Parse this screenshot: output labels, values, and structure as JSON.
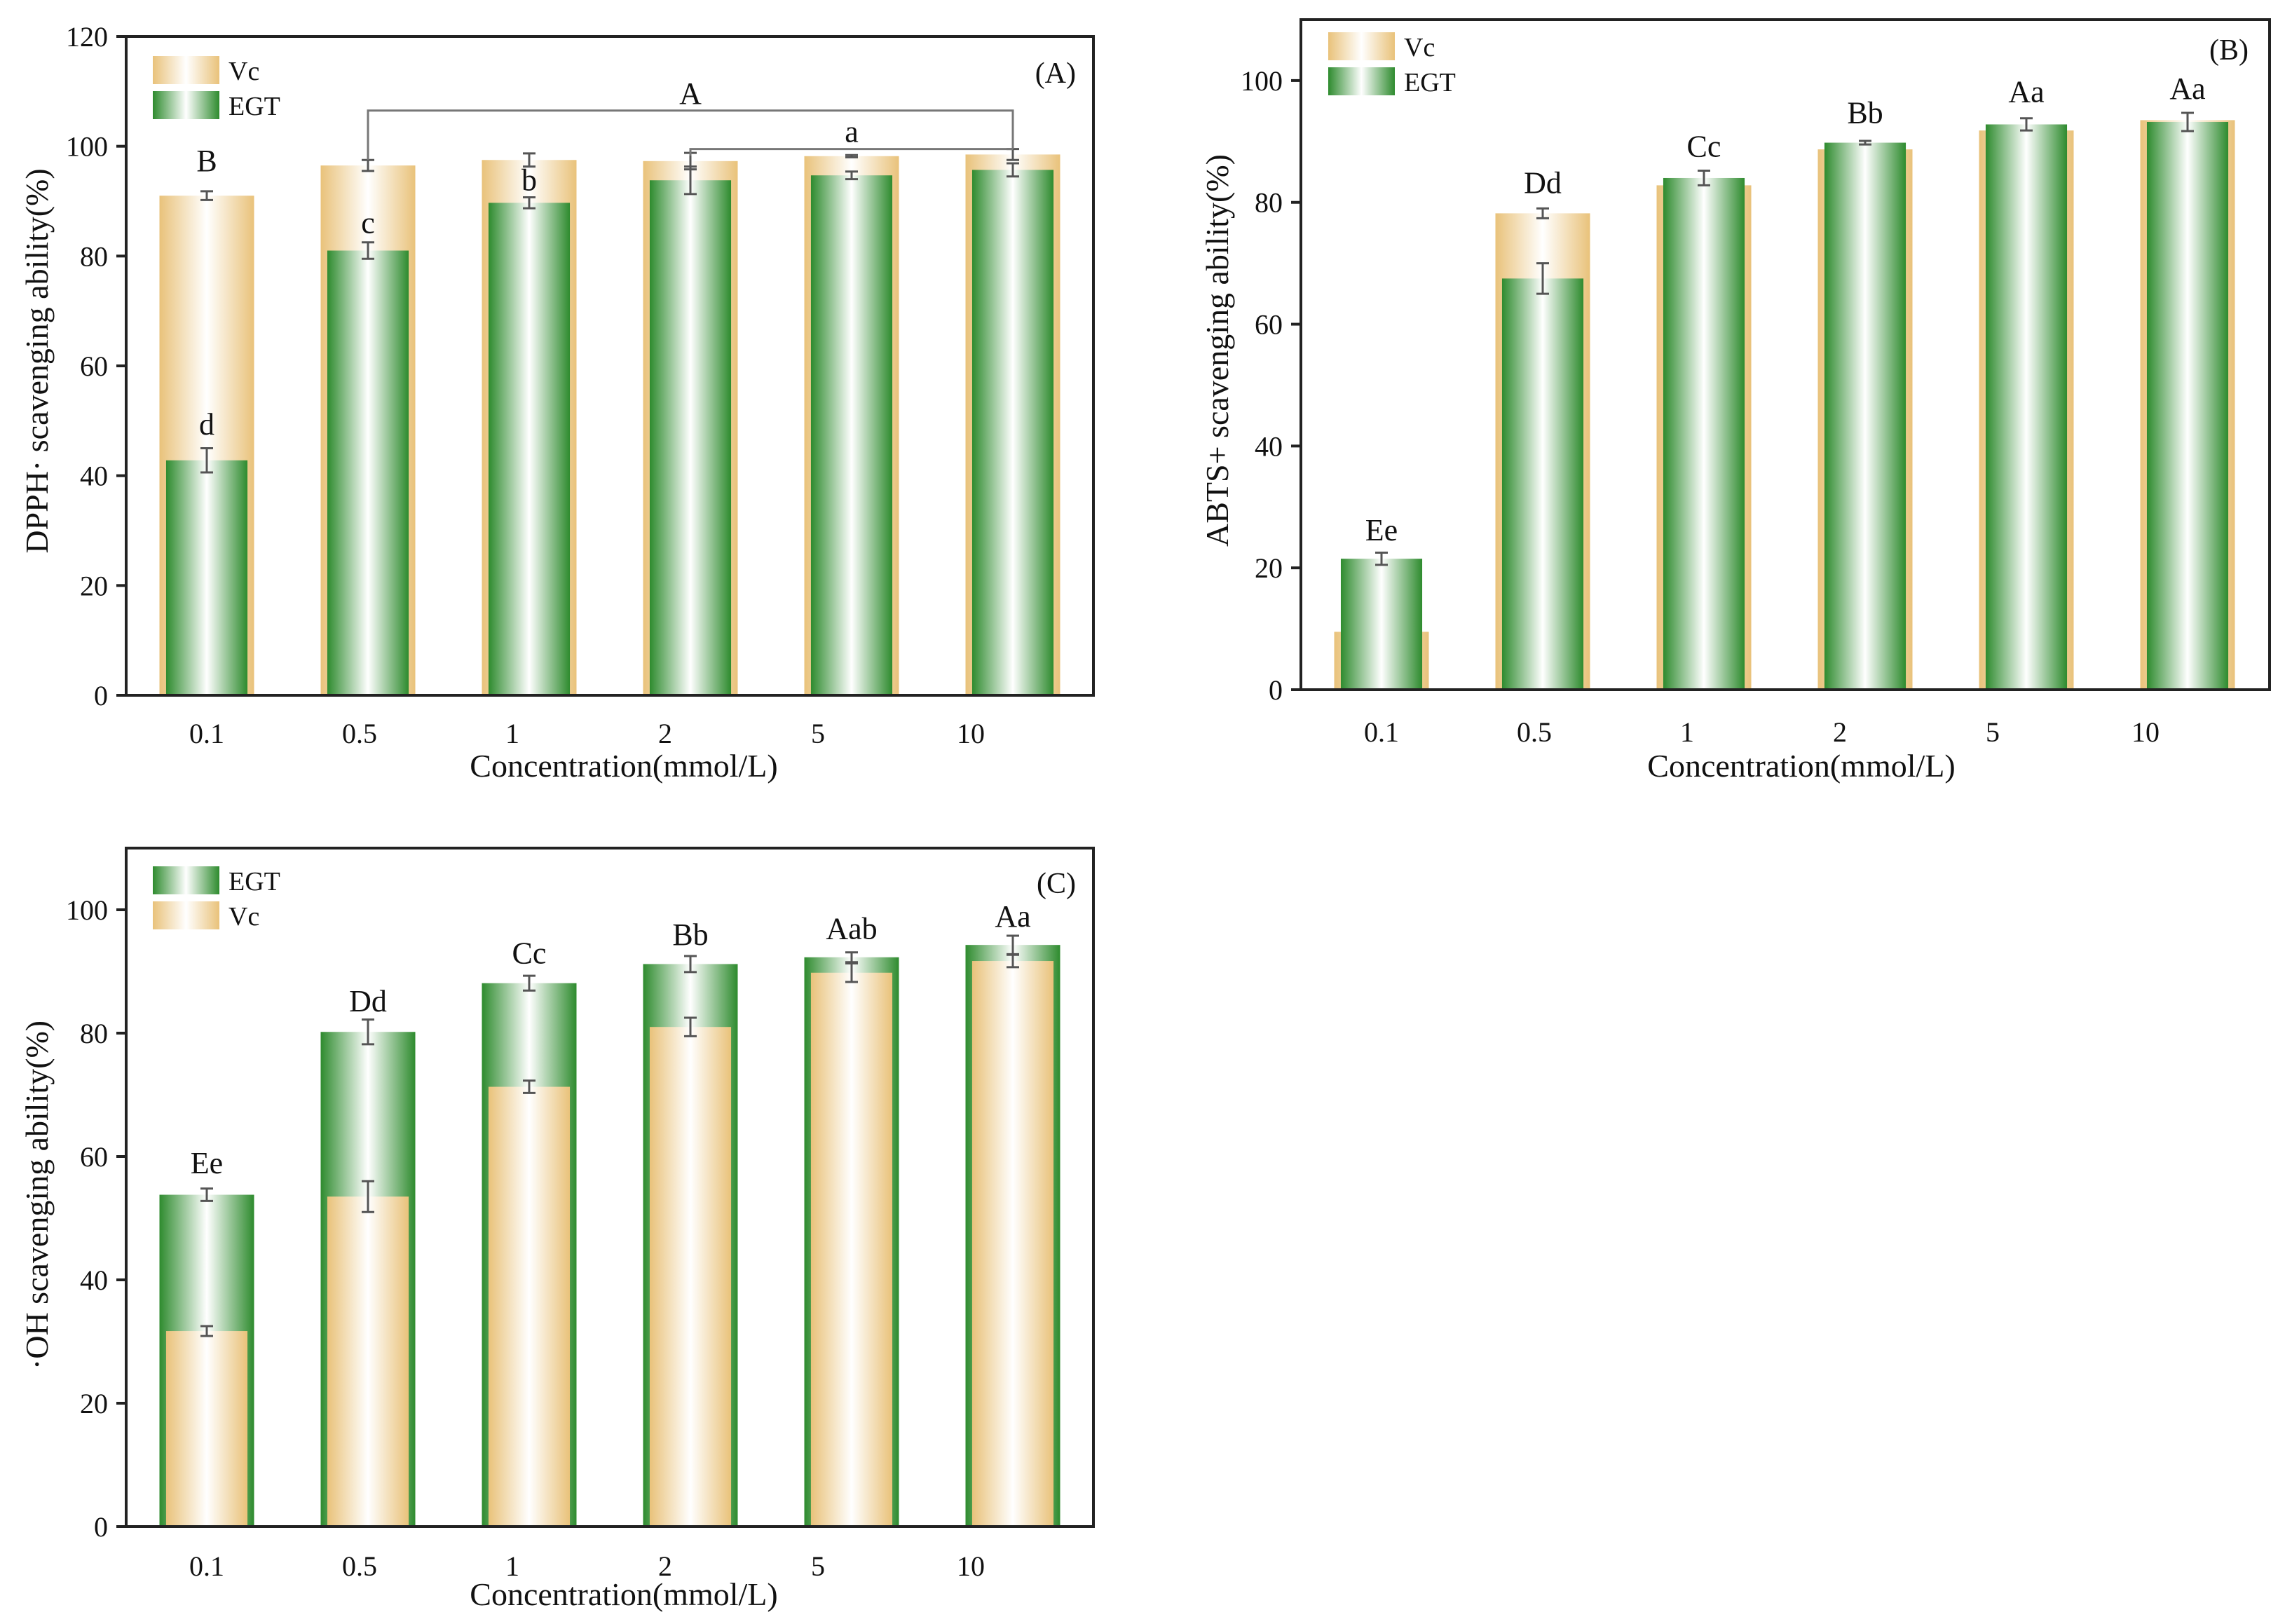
{
  "colors": {
    "vc_edge": "#E9C27A",
    "vc_center": "#FFFFFF",
    "egt_edge": "#2E8B2E",
    "egt_center": "#FFFFFF",
    "axis": "#222222",
    "error_bar": "#555555",
    "bracket": "#777777"
  },
  "chart_data": [
    {
      "id": "A",
      "type": "bar",
      "panel_label": "(A)",
      "xlabel": "Concentration(mmol/L)",
      "ylabel": "DPPH· scavenging ability(%)",
      "categories": [
        "0.1",
        "0.5",
        "1",
        "2",
        "5",
        "10"
      ],
      "ylim": [
        0,
        120
      ],
      "yticks": [
        0,
        20,
        40,
        60,
        80,
        100,
        120
      ],
      "legend_position": "top-left",
      "legend": [
        {
          "name": "Vc",
          "key": "vc"
        },
        {
          "name": "EGT",
          "key": "egt"
        }
      ],
      "draw_order": [
        "vc",
        "egt"
      ],
      "series": [
        {
          "name": "Vc",
          "key": "vc",
          "values": [
            91,
            96.5,
            97.5,
            97.3,
            98.2,
            98.5
          ],
          "errors": [
            0.8,
            1.0,
            1.2,
            1.5,
            0.2,
            1.0
          ]
        },
        {
          "name": "EGT",
          "key": "egt",
          "values": [
            42.8,
            81,
            89.7,
            93.8,
            94.7,
            95.7
          ],
          "errors": [
            2.2,
            1.5,
            1.0,
            2.5,
            0.7,
            1.2
          ]
        }
      ],
      "annotations": [
        {
          "text": "B",
          "cat": 0,
          "y": 95.5
        },
        {
          "text": "d",
          "cat": 0,
          "y": 47.5
        },
        {
          "text": "c",
          "cat": 1,
          "y": 84.2
        },
        {
          "text": "b",
          "cat": 2,
          "y": 92.0
        }
      ],
      "brackets": [
        {
          "text": "A",
          "from": 1,
          "to": 5,
          "y": 106.5
        },
        {
          "text": "a",
          "from": 3,
          "to": 5,
          "y": 99.5
        }
      ]
    },
    {
      "id": "B",
      "type": "bar",
      "panel_label": "(B)",
      "xlabel": "Concentration(mmol/L)",
      "ylabel": "ABTS+ scavenging ability(%)",
      "categories": [
        "0.1",
        "0.5",
        "1",
        "2",
        "5",
        "10"
      ],
      "ylim": [
        0,
        110
      ],
      "yticks": [
        0,
        20,
        40,
        60,
        80,
        100
      ],
      "legend_position": "top-left",
      "legend": [
        {
          "name": "Vc",
          "key": "vc"
        },
        {
          "name": "EGT",
          "key": "egt"
        }
      ],
      "draw_order": [
        "vc",
        "egt"
      ],
      "series": [
        {
          "name": "Vc",
          "key": "vc",
          "values": [
            9.5,
            78.2,
            82.8,
            88.7,
            91.8,
            93.5
          ],
          "errors": [
            0,
            0.8,
            0,
            0,
            0,
            0
          ]
        },
        {
          "name": "EGT",
          "key": "egt",
          "values": [
            21.5,
            67.5,
            84,
            89.8,
            92.8,
            93.2
          ],
          "errors": [
            1.0,
            2.5,
            1.2,
            0.3,
            1.0,
            1.5
          ]
        }
      ],
      "annotations": [
        {
          "text": "Ee",
          "cat": 0,
          "y": 24.5
        },
        {
          "text": "Dd",
          "cat": 1,
          "y": 81.5
        },
        {
          "text": "Cc",
          "cat": 2,
          "y": 87.5
        },
        {
          "text": "Bb",
          "cat": 3,
          "y": 93.0
        },
        {
          "text": "Aa",
          "cat": 4,
          "y": 96.5
        },
        {
          "text": "Aa",
          "cat": 5,
          "y": 97.0
        }
      ],
      "brackets": []
    },
    {
      "id": "C",
      "type": "bar",
      "panel_label": "(C)",
      "xlabel": "Concentration(mmol/L)",
      "ylabel": "·OH scavenging ability(%)",
      "categories": [
        "0.1",
        "0.5",
        "1",
        "2",
        "5",
        "10"
      ],
      "ylim": [
        0,
        110
      ],
      "yticks": [
        0,
        20,
        40,
        60,
        80,
        100
      ],
      "legend_position": "top-left",
      "legend": [
        {
          "name": "EGT",
          "key": "egt"
        },
        {
          "name": "Vc",
          "key": "vc"
        }
      ],
      "draw_order": [
        "egt",
        "vc"
      ],
      "series": [
        {
          "name": "EGT",
          "key": "egt",
          "values": [
            53.8,
            80.2,
            88.1,
            91.2,
            92.3,
            94.3
          ],
          "errors": [
            1.0,
            2.0,
            1.2,
            1.3,
            0.8,
            1.5
          ]
        },
        {
          "name": "Vc",
          "key": "vc",
          "values": [
            31.7,
            53.5,
            71.3,
            81,
            89.8,
            91.7
          ],
          "errors": [
            0.8,
            2.5,
            1.0,
            1.5,
            1.5,
            1.0
          ]
        }
      ],
      "annotations": [
        {
          "text": "Ee",
          "cat": 0,
          "y": 57.3
        },
        {
          "text": "Dd",
          "cat": 1,
          "y": 83.5
        },
        {
          "text": "Cc",
          "cat": 2,
          "y": 91.3
        },
        {
          "text": "Bb",
          "cat": 3,
          "y": 94.3
        },
        {
          "text": "Aab",
          "cat": 4,
          "y": 95.3
        },
        {
          "text": "Aa",
          "cat": 5,
          "y": 97.3
        }
      ],
      "brackets": []
    }
  ]
}
